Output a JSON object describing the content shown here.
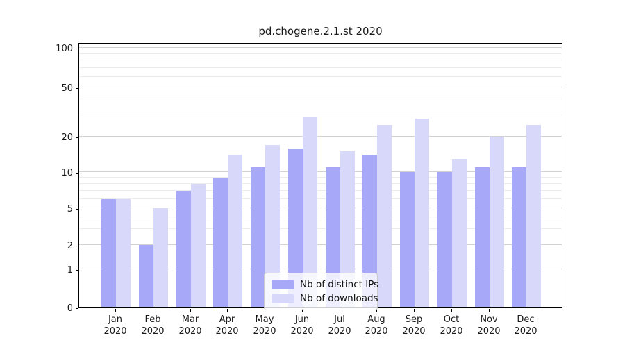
{
  "title": "pd.chogene.2.1.st 2020",
  "chart_data": {
    "type": "bar",
    "title": "pd.chogene.2.1.st 2020",
    "categories": [
      "Jan",
      "Feb",
      "Mar",
      "Apr",
      "May",
      "Jun",
      "Jul",
      "Aug",
      "Sep",
      "Oct",
      "Nov",
      "Dec"
    ],
    "category_year": "2020",
    "series": [
      {
        "name": "Nb of distinct IPs",
        "color": "#a8a8f8",
        "values": [
          6,
          2,
          7,
          9,
          11,
          16,
          11,
          14,
          10,
          10,
          11,
          11
        ]
      },
      {
        "name": "Nb of downloads",
        "color": "#d8d8fa",
        "values": [
          6,
          5,
          8,
          14,
          17,
          29,
          15,
          25,
          28,
          13,
          20,
          25
        ]
      }
    ],
    "y_axis": {
      "scale": "log-like",
      "ticks": [
        0,
        1,
        2,
        5,
        10,
        20,
        50,
        100
      ],
      "minor_gridlines": [
        3,
        4,
        6,
        7,
        8,
        9,
        30,
        40,
        60,
        70,
        80,
        90
      ],
      "range": [
        0,
        100
      ]
    },
    "x_axis": {
      "label_format": "Mon\n2020"
    },
    "grid": true,
    "legend": {
      "position": "bottom-center-inside",
      "entries": [
        "Nb of distinct IPs",
        "Nb of downloads"
      ]
    },
    "colors": {
      "bar_distinct_ips": "#a8a8f8",
      "bar_downloads": "#d8d8fa",
      "major_grid": "#d2d2d2",
      "minor_grid": "#ececec",
      "axis": "#000000",
      "text": "#1a1a1a"
    }
  }
}
